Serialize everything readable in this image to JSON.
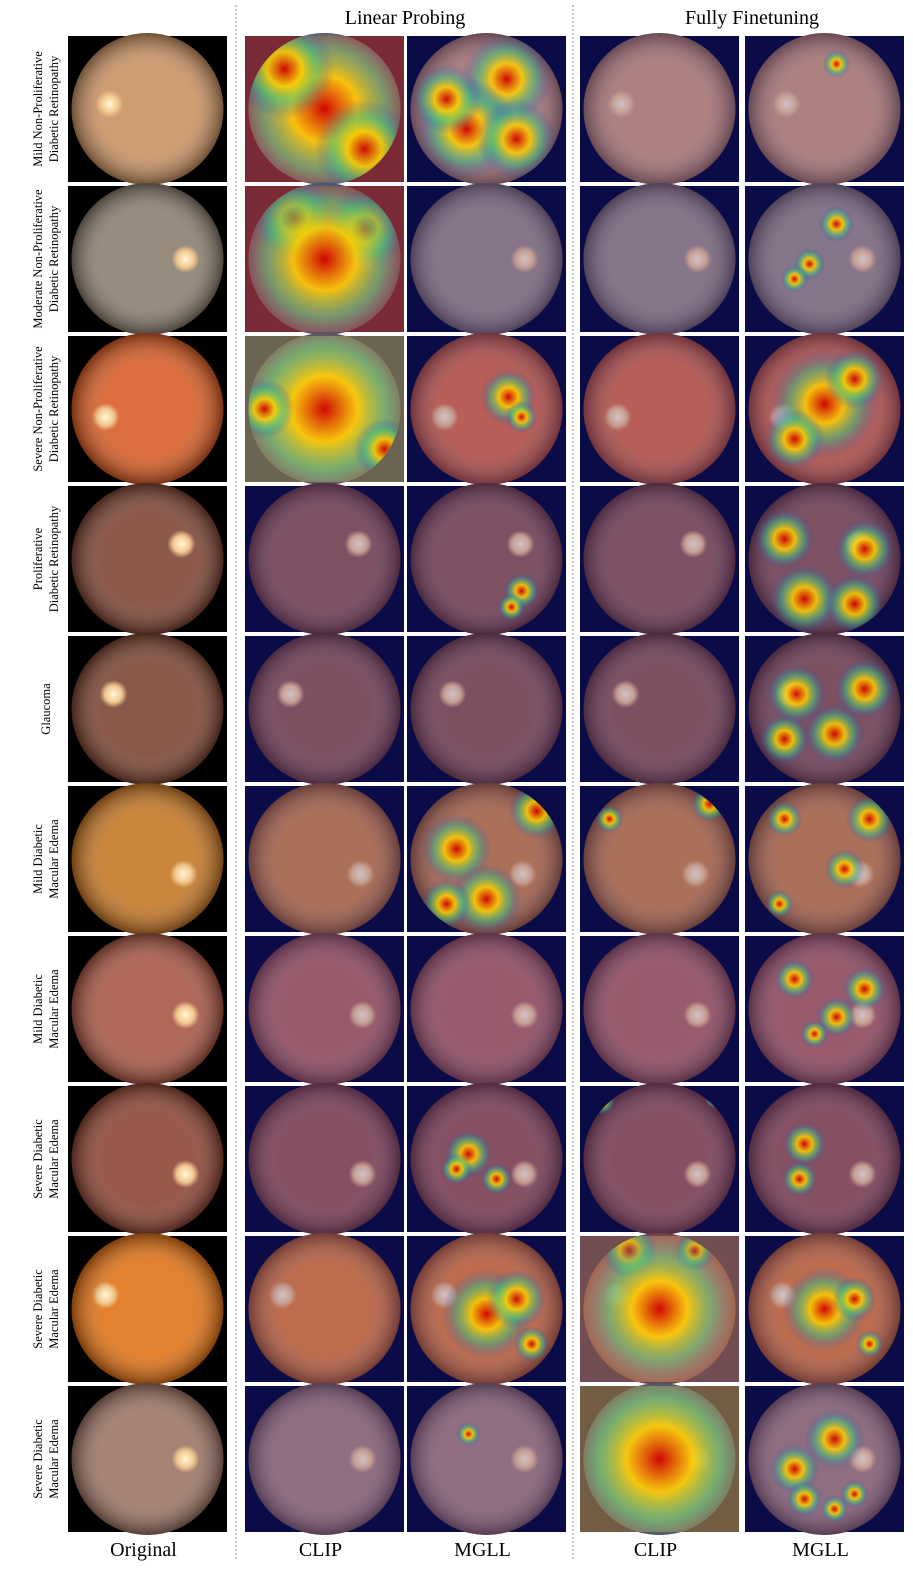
{
  "header": {
    "groups": [
      "Linear Probing",
      "Fully Finetuning"
    ]
  },
  "rows": [
    {
      "lines": [
        "Mild Non-Proliferative",
        "Diabetic Retinopathy"
      ]
    },
    {
      "lines": [
        "Moderate Non-Proliferative",
        "Diabetic Retinopathy"
      ]
    },
    {
      "lines": [
        "Severe Non-Proliferative",
        "Diabetic Retinopathy"
      ]
    },
    {
      "lines": [
        "Proliferative",
        "Diabetic Retinopathy"
      ]
    },
    {
      "lines": [
        "Glaucoma"
      ]
    },
    {
      "lines": [
        "Mild Diabetic",
        "Macular Edema"
      ]
    },
    {
      "lines": [
        "Mild Diabetic",
        "Macular Edema"
      ]
    },
    {
      "lines": [
        "Severe Diabetic",
        "Macular Edema"
      ]
    },
    {
      "lines": [
        "Severe Diabetic",
        "Macular Edema"
      ]
    },
    {
      "lines": [
        "Severe Diabetic",
        "Macular Edema"
      ]
    }
  ],
  "footer": {
    "columns": [
      "Original",
      "CLIP",
      "MGLL",
      "CLIP",
      "MGLL"
    ]
  }
}
